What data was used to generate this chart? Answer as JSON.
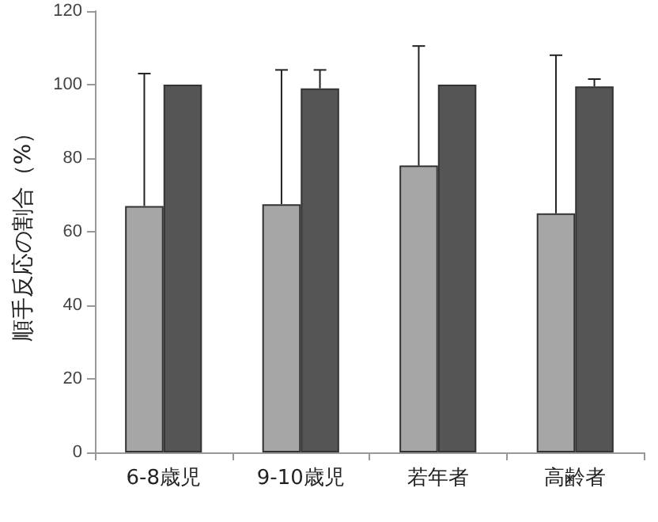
{
  "chart_data": {
    "type": "bar",
    "ylabel": "順手反応の割合（%）",
    "categories": [
      "6-8歳児",
      "9-10歳児",
      "若年者",
      "高齢者"
    ],
    "series": [
      {
        "color": "#a6a6a6",
        "values": [
          67,
          67.5,
          78,
          65
        ],
        "errors": [
          [
            67,
            103
          ],
          [
            67.5,
            104
          ],
          [
            78,
            110.5
          ],
          [
            65,
            108
          ]
        ]
      },
      {
        "color": "#555555",
        "values": [
          100,
          99,
          100,
          99.5
        ],
        "errors": [
          null,
          [
            99,
            104
          ],
          null,
          [
            99.5,
            101.5
          ]
        ]
      }
    ],
    "ylim": [
      0,
      120
    ],
    "yticks": [
      0,
      20,
      40,
      60,
      80,
      100,
      120
    ],
    "grid": false
  }
}
